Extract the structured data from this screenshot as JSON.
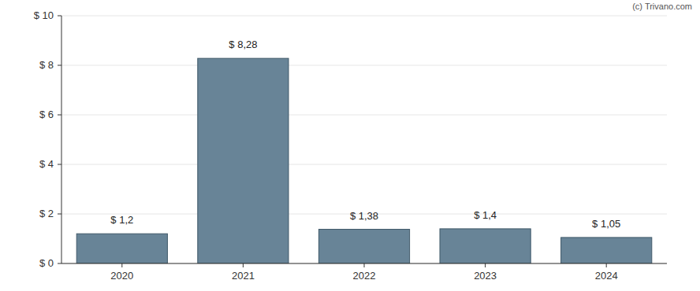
{
  "chart_data": {
    "type": "bar",
    "categories": [
      "2020",
      "2021",
      "2022",
      "2023",
      "2024"
    ],
    "values": [
      1.2,
      8.28,
      1.38,
      1.4,
      1.05
    ],
    "value_labels": [
      "$ 1,2",
      "$ 8,28",
      "$ 1,38",
      "$ 1,4",
      "$ 1,05"
    ],
    "color": "#688497",
    "ylim": [
      0,
      10
    ],
    "yticks": [
      {
        "value": 0,
        "label": "$ 0"
      },
      {
        "value": 2,
        "label": "$ 2"
      },
      {
        "value": 4,
        "label": "$ 4"
      },
      {
        "value": 6,
        "label": "$ 6"
      },
      {
        "value": 8,
        "label": "$ 8"
      },
      {
        "value": 10,
        "label": "$ 10"
      }
    ],
    "grid": true,
    "data_labels": true,
    "annotations": [
      "(c) Trivano.com"
    ]
  }
}
